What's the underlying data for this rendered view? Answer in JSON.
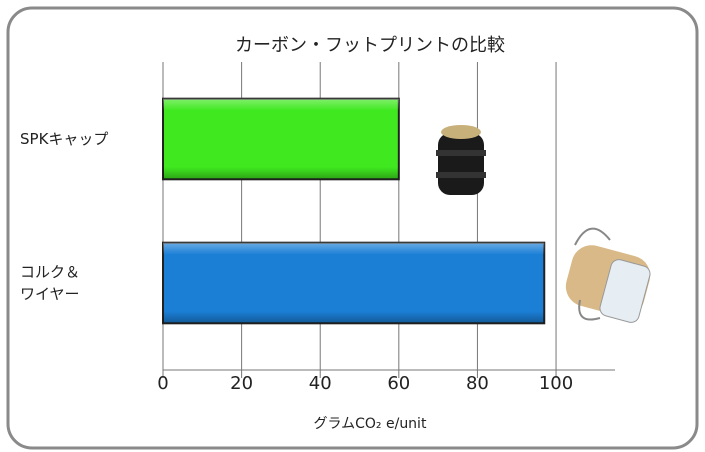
{
  "chart_data": {
    "type": "bar",
    "orientation": "horizontal",
    "title": "カーボン・フットプリントの比較",
    "x_label": "グラムCO₂ e/unit",
    "categories": [
      "SPKキャップ",
      "コルク＆\nワイヤー"
    ],
    "values": [
      60,
      97
    ],
    "colors": [
      "#3fe81f",
      "#1b7fd6"
    ],
    "xlim": [
      0,
      115
    ],
    "xticks": [
      0,
      20,
      40,
      60,
      80,
      100
    ],
    "grid": true
  }
}
